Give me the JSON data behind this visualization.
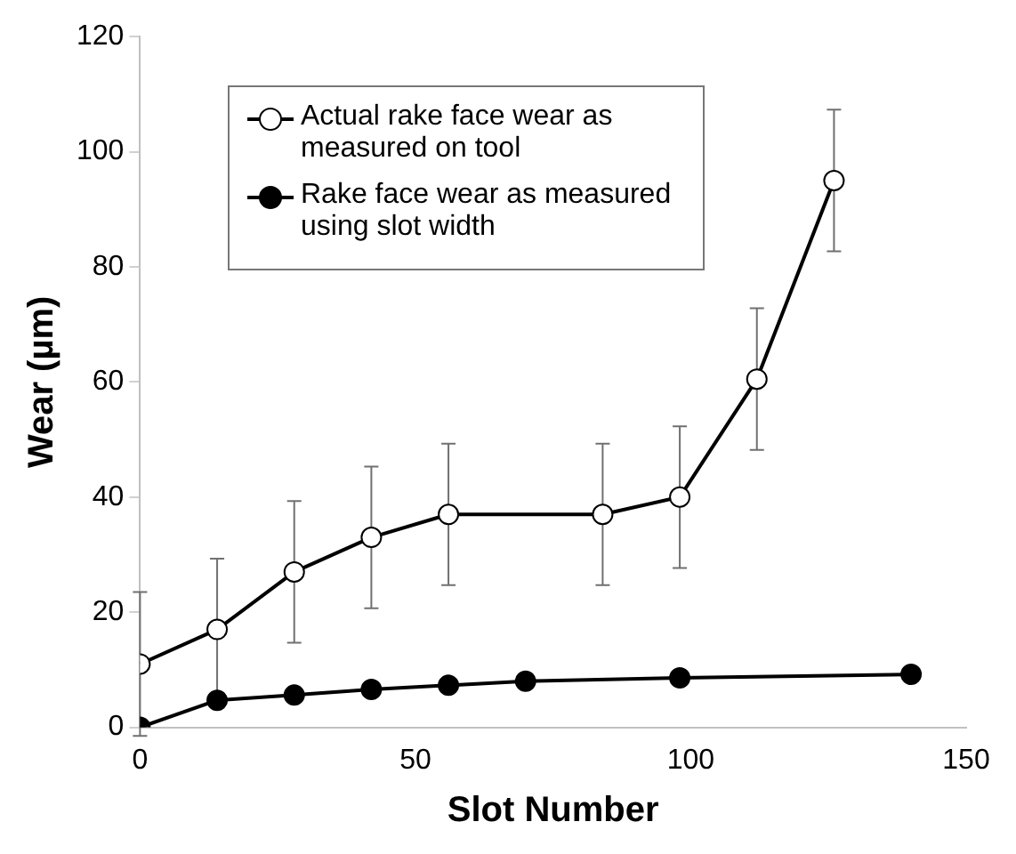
{
  "chart_data": {
    "type": "line",
    "xlabel": "Slot Number",
    "ylabel": "Wear (µm)",
    "xlim": [
      0,
      150
    ],
    "xticks": [
      0,
      50,
      100,
      150
    ],
    "ylim": [
      0,
      120
    ],
    "yticks": [
      0,
      20,
      40,
      60,
      80,
      100,
      120
    ],
    "grid": false,
    "legend": "top left",
    "marker": "circle",
    "line_style": "solid",
    "series": [
      {
        "name": "Actual rake face wear as measured on tool",
        "color": "#ffffff",
        "x": [
          0,
          14,
          28,
          42,
          56,
          84,
          98,
          112,
          126
        ],
        "values": [
          11,
          17,
          27,
          33,
          37,
          37,
          40,
          60.5,
          95
        ],
        "errors": [
          12.5,
          12.3,
          12.3,
          12.3,
          12.3,
          12.3,
          12.3,
          12.3,
          12.3
        ]
      },
      {
        "name": "Rake face wear as measured using slot width",
        "color": "#000000",
        "x": [
          0,
          14,
          28,
          42,
          56,
          70,
          98,
          140
        ],
        "values": [
          0,
          4.7,
          5.6,
          6.6,
          7.3,
          8,
          8.6,
          9.2
        ]
      }
    ]
  }
}
